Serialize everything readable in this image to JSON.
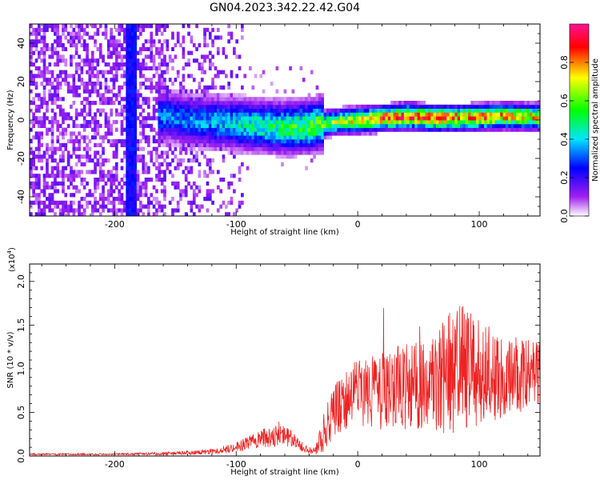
{
  "title": "GN04.2023.342.22.42.G04",
  "chart_data": [
    {
      "type": "heatmap",
      "xlabel": "Height of straight line (km)",
      "ylabel": "Frequency (Hz)",
      "xlim": [
        -270,
        150
      ],
      "ylim": [
        -50,
        50
      ],
      "xticks": [
        -200,
        -100,
        0,
        100
      ],
      "yticks": [
        -40,
        -20,
        0,
        20,
        40
      ],
      "colorbar": {
        "label": "Normalized spectral amplitude",
        "range": [
          0,
          1
        ],
        "ticks": [
          "0.0",
          "0.2",
          "0.4",
          "0.6",
          "0.8"
        ],
        "tick_values": [
          0,
          0.2,
          0.4,
          0.6,
          0.8
        ],
        "colors": [
          "#ffffff",
          "#a020f0",
          "#0000ff",
          "#00e5ff",
          "#00ff00",
          "#ffff00",
          "#ff0000",
          "#ff1493"
        ]
      },
      "ridge": {
        "x": [
          -160,
          -140,
          -120,
          -100,
          -80,
          -60,
          -40,
          -20,
          0,
          20,
          40,
          60,
          80,
          100,
          120,
          150
        ],
        "center": [
          1,
          -1,
          -2,
          -3,
          -4,
          -5,
          -4,
          -2,
          -1,
          0,
          1,
          0,
          0,
          0.5,
          1,
          0.5
        ],
        "amplitude": [
          0.35,
          0.35,
          0.4,
          0.45,
          0.5,
          0.55,
          0.6,
          0.65,
          0.75,
          0.85,
          0.9,
          0.9,
          0.88,
          0.85,
          0.8,
          0.75
        ]
      }
    },
    {
      "type": "line",
      "xlabel": "Height of straight line (km)",
      "ylabel": "SNR (10 * v/v)",
      "yscale_label": "(x10",
      "yscale_exp": "4",
      "yscale_close": ")",
      "xlim": [
        -270,
        150
      ],
      "ylim": [
        0,
        2.2
      ],
      "xticks": [
        -200,
        -100,
        0,
        100
      ],
      "yticks": [
        "0.0",
        "0.5",
        "1.0",
        "1.5",
        "2.0"
      ],
      "ytick_values": [
        0,
        0.5,
        1.0,
        1.5,
        2.0
      ],
      "color": "#ee2222",
      "envelope": {
        "x": [
          -270,
          -200,
          -150,
          -120,
          -100,
          -80,
          -65,
          -55,
          -45,
          -35,
          -30,
          -20,
          -10,
          0,
          20,
          40,
          60,
          75,
          85,
          100,
          120,
          150
        ],
        "mean": [
          0.02,
          0.02,
          0.03,
          0.05,
          0.1,
          0.2,
          0.25,
          0.2,
          0.1,
          0.05,
          0.2,
          0.5,
          0.65,
          0.75,
          0.75,
          0.8,
          0.8,
          0.95,
          1.0,
          0.95,
          0.9,
          0.95
        ],
        "noise": [
          0.01,
          0.01,
          0.02,
          0.03,
          0.06,
          0.1,
          0.15,
          0.1,
          0.05,
          0.04,
          0.2,
          0.3,
          0.35,
          0.4,
          0.45,
          0.5,
          0.55,
          0.7,
          0.75,
          0.6,
          0.5,
          0.35
        ]
      }
    }
  ]
}
